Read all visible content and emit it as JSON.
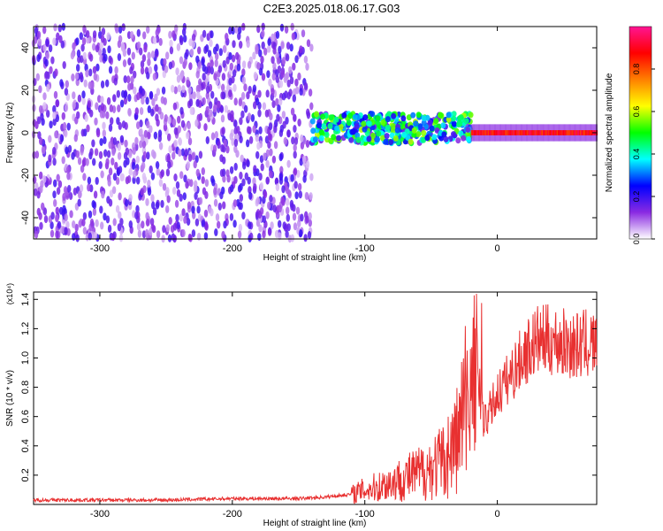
{
  "figure_title": "C2E3.2025.018.06.17.G03",
  "chart_data": [
    {
      "type": "heatmap",
      "xlabel": "Height of straight line (km)",
      "ylabel": "Frequency (Hz)",
      "xlim": [
        -350,
        75
      ],
      "ylim": [
        -50,
        50
      ],
      "xticks": [
        -300,
        -200,
        -100,
        0
      ],
      "yticks": [
        -40,
        -20,
        0,
        20,
        40
      ],
      "colorbar": {
        "label": "Normalized spectral amplitude",
        "range": [
          0,
          1
        ],
        "ticks": [
          "0.0",
          "0.2",
          "0.4",
          "0.6",
          "0.8"
        ],
        "colormap": [
          "#ffffff",
          "#8a2be2",
          "#0000ff",
          "#00ffff",
          "#00ff00",
          "#ffff00",
          "#ff8000",
          "#ff0000",
          "#ff1493"
        ]
      },
      "features": [
        {
          "x_range": [
            -350,
            -140
          ],
          "freq_range": [
            -50,
            50
          ],
          "amplitude": 0.12,
          "note": "broadband noise"
        },
        {
          "x_range": [
            -140,
            -20
          ],
          "freq_center": 2,
          "amplitude": 0.4
        },
        {
          "x_range": [
            -20,
            75
          ],
          "freq_center": 0,
          "amplitude": 0.95
        }
      ]
    },
    {
      "type": "line",
      "xlabel": "Height of straight line (km)",
      "ylabel": "SNR (10 * v/v)",
      "y_multiplier": "(x10⁴)",
      "xlim": [
        -350,
        75
      ],
      "ylim": [
        0,
        1.45
      ],
      "xticks": [
        -300,
        -200,
        -100,
        0
      ],
      "yticks": [
        0.2,
        0.4,
        0.6,
        0.8,
        1.0,
        1.2,
        1.4
      ],
      "series": [
        {
          "color": "#e83030",
          "x": [
            -350,
            -300,
            -250,
            -200,
            -150,
            -130,
            -110,
            -100,
            -90,
            -80,
            -70,
            -60,
            -50,
            -40,
            -30,
            -25,
            -20,
            -15,
            -10,
            -5,
            0,
            10,
            20,
            30,
            40,
            50,
            60,
            70,
            75
          ],
          "y": [
            0.03,
            0.03,
            0.03,
            0.04,
            0.04,
            0.05,
            0.07,
            0.1,
            0.12,
            0.15,
            0.18,
            0.21,
            0.25,
            0.3,
            0.45,
            0.65,
            0.8,
            0.9,
            0.55,
            0.65,
            0.75,
            0.88,
            1.02,
            1.12,
            1.12,
            1.1,
            1.08,
            1.1,
            1.08
          ]
        }
      ]
    }
  ]
}
